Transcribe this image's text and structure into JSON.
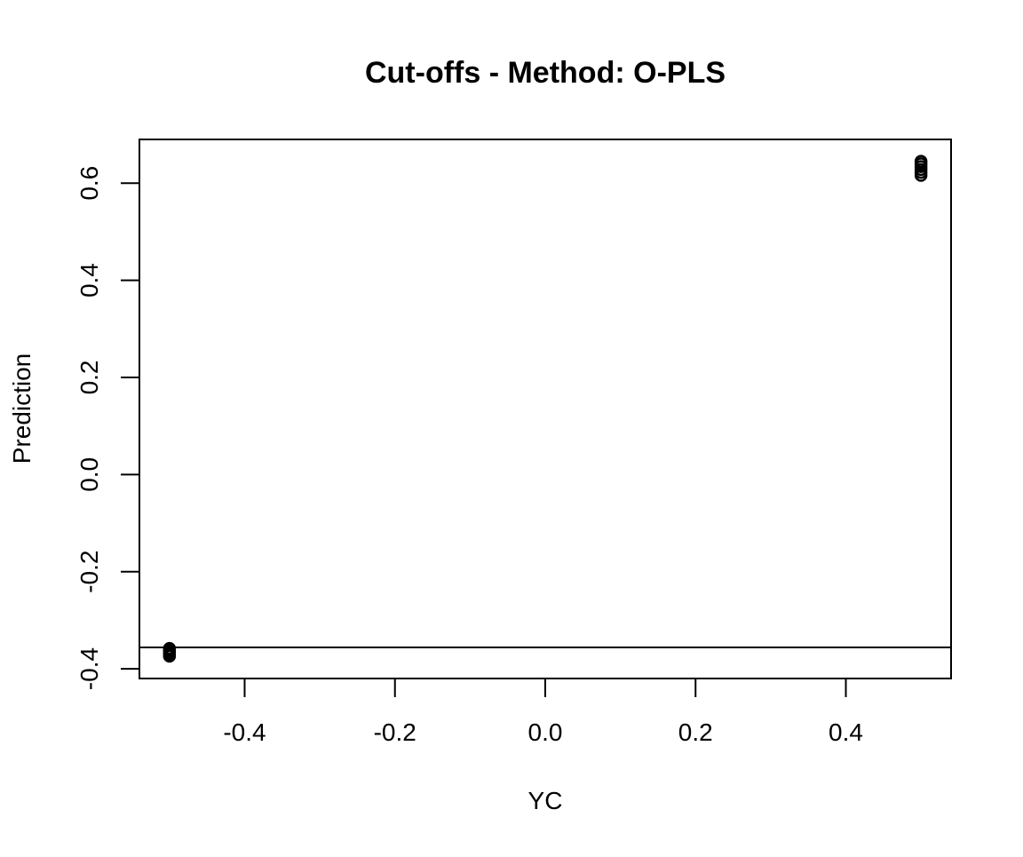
{
  "chart_data": {
    "type": "scatter",
    "title": "Cut-offs - Method: O-PLS",
    "xlabel": "YC",
    "ylabel": "Prediction",
    "xlim": [
      -0.54,
      0.54
    ],
    "ylim": [
      -0.42,
      0.69
    ],
    "x_ticks": [
      -0.4,
      -0.2,
      0.0,
      0.2,
      0.4
    ],
    "x_tick_labels": [
      "-0.4",
      "-0.2",
      "0.0",
      "0.2",
      "0.4"
    ],
    "y_ticks": [
      -0.4,
      -0.2,
      0.0,
      0.2,
      0.4,
      0.6
    ],
    "y_tick_labels": [
      "-0.4",
      "-0.2",
      "0.0",
      "0.2",
      "0.4",
      "0.6"
    ],
    "grid": false,
    "points": [
      {
        "x": -0.5,
        "y": -0.358
      },
      {
        "x": -0.5,
        "y": -0.362
      },
      {
        "x": -0.5,
        "y": -0.366
      },
      {
        "x": -0.5,
        "y": -0.37
      },
      {
        "x": -0.5,
        "y": -0.374
      },
      {
        "x": 0.5,
        "y": 0.616
      },
      {
        "x": 0.5,
        "y": 0.622
      },
      {
        "x": 0.5,
        "y": 0.628
      },
      {
        "x": 0.5,
        "y": 0.634
      },
      {
        "x": 0.5,
        "y": 0.64
      },
      {
        "x": 0.5,
        "y": 0.645
      }
    ],
    "hline": -0.356,
    "point_color": "#000000",
    "line_color": "#000000"
  }
}
